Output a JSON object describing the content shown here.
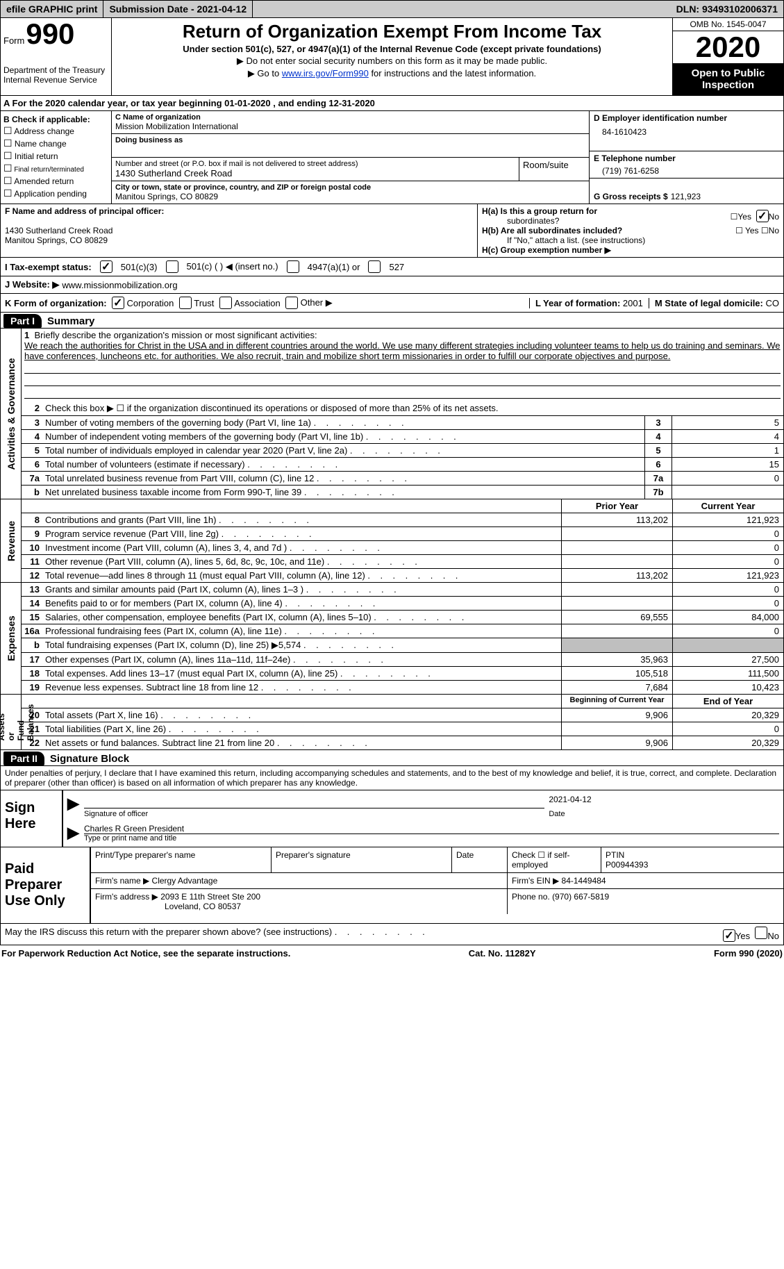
{
  "topbar": {
    "efile": "efile GRAPHIC print",
    "submission": "Submission Date - 2021-04-12",
    "dln": "DLN: 93493102006371"
  },
  "header": {
    "form_word": "Form",
    "form_num": "990",
    "dept": "Department of the Treasury\nInternal Revenue Service",
    "title": "Return of Organization Exempt From Income Tax",
    "subtitle": "Under section 501(c), 527, or 4947(a)(1) of the Internal Revenue Code (except private foundations)",
    "note1": "▶ Do not enter social security numbers on this form as it may be made public.",
    "note2_pre": "▶ Go to ",
    "note2_link": "www.irs.gov/Form990",
    "note2_post": " for instructions and the latest information.",
    "omb": "OMB No. 1545-0047",
    "year": "2020",
    "open": "Open to Public\nInspection"
  },
  "rowA": "A For the 2020 calendar year, or tax year beginning 01-01-2020    , and ending 12-31-2020",
  "boxB": {
    "title": "B Check if applicable:",
    "items": [
      "Address change",
      "Name change",
      "Initial return",
      "Final return/terminated",
      "Amended return",
      "Application pending"
    ]
  },
  "boxC": {
    "lbl_name": "C Name of organization",
    "name": "Mission Mobilization International",
    "lbl_dba": "Doing business as",
    "dba": "",
    "lbl_addr": "Number and street (or P.O. box if mail is not delivered to street address)",
    "lbl_room": "Room/suite",
    "addr": "1430 Sutherland Creek Road",
    "lbl_city": "City or town, state or province, country, and ZIP or foreign postal code",
    "city": "Manitou Springs, CO  80829"
  },
  "boxD": {
    "lbl": "D Employer identification number",
    "val": "84-1610423"
  },
  "boxE": {
    "lbl": "E Telephone number",
    "val": "(719) 761-6258"
  },
  "boxG": {
    "lbl": "G Gross receipts $",
    "val": "121,923"
  },
  "boxF": {
    "lbl": "F Name and address of principal officer:",
    "line1": "",
    "line2": "1430 Sutherland Creek Road",
    "line3": "Manitou Springs, CO  80829"
  },
  "boxH": {
    "a_lbl": "H(a)  Is this a group return for",
    "a_lbl2": "subordinates?",
    "a_yes": "Yes",
    "a_no": "No",
    "b_lbl": "H(b)  Are all subordinates included?",
    "b_note": "If \"No,\" attach a list. (see instructions)",
    "c_lbl": "H(c)  Group exemption number ▶"
  },
  "taxStatus": {
    "lbl": "I  Tax-exempt status:",
    "o1": "501(c)(3)",
    "o2": "501(c) (  ) ◀ (insert no.)",
    "o3": "4947(a)(1) or",
    "o4": "527"
  },
  "rowJ": {
    "lbl": "J  Website: ▶ ",
    "val": "www.missionmobilization.org"
  },
  "rowK": {
    "lbl": "K Form of organization:",
    "o1": "Corporation",
    "o2": "Trust",
    "o3": "Association",
    "o4": "Other ▶",
    "l_lbl": "L Year of formation:",
    "l_val": "2001",
    "m_lbl": "M State of legal domicile:",
    "m_val": "CO"
  },
  "partI": {
    "tag": "Part I",
    "title": "Summary"
  },
  "gov": {
    "label": "Activities & Governance",
    "line1_lbl": "Briefly describe the organization's mission or most significant activities:",
    "mission": "We reach the authorities for Christ in the USA and in different countries around the world. We use many different strategies including volunteer teams to help us do training and seminars. We have conferences, luncheons etc. for authorities. We also recruit, train and mobilize short term missionaries in order to fulfill our corporate objectives and purpose.",
    "line2": "Check this box ▶ ☐  if the organization discontinued its operations or disposed of more than 25% of its net assets.",
    "rows": [
      {
        "n": "3",
        "t": "Number of voting members of the governing body (Part VI, line 1a)",
        "cn": "3",
        "v": "5"
      },
      {
        "n": "4",
        "t": "Number of independent voting members of the governing body (Part VI, line 1b)",
        "cn": "4",
        "v": "4"
      },
      {
        "n": "5",
        "t": "Total number of individuals employed in calendar year 2020 (Part V, line 2a)",
        "cn": "5",
        "v": "1"
      },
      {
        "n": "6",
        "t": "Total number of volunteers (estimate if necessary)",
        "cn": "6",
        "v": "15"
      },
      {
        "n": "7a",
        "t": "Total unrelated business revenue from Part VIII, column (C), line 12",
        "cn": "7a",
        "v": "0"
      },
      {
        "n": "b",
        "t": "Net unrelated business taxable income from Form 990-T, line 39",
        "cn": "7b",
        "v": ""
      }
    ]
  },
  "rev": {
    "label": "Revenue",
    "hdr_prev": "Prior Year",
    "hdr_curr": "Current Year",
    "rows": [
      {
        "n": "8",
        "t": "Contributions and grants (Part VIII, line 1h)",
        "p": "113,202",
        "c": "121,923"
      },
      {
        "n": "9",
        "t": "Program service revenue (Part VIII, line 2g)",
        "p": "",
        "c": "0"
      },
      {
        "n": "10",
        "t": "Investment income (Part VIII, column (A), lines 3, 4, and 7d )",
        "p": "",
        "c": "0"
      },
      {
        "n": "11",
        "t": "Other revenue (Part VIII, column (A), lines 5, 6d, 8c, 9c, 10c, and 11e)",
        "p": "",
        "c": "0"
      },
      {
        "n": "12",
        "t": "Total revenue—add lines 8 through 11 (must equal Part VIII, column (A), line 12)",
        "p": "113,202",
        "c": "121,923"
      }
    ]
  },
  "exp": {
    "label": "Expenses",
    "rows": [
      {
        "n": "13",
        "t": "Grants and similar amounts paid (Part IX, column (A), lines 1–3 )",
        "p": "",
        "c": "0"
      },
      {
        "n": "14",
        "t": "Benefits paid to or for members (Part IX, column (A), line 4)",
        "p": "",
        "c": "0"
      },
      {
        "n": "15",
        "t": "Salaries, other compensation, employee benefits (Part IX, column (A), lines 5–10)",
        "p": "69,555",
        "c": "84,000"
      },
      {
        "n": "16a",
        "t": "Professional fundraising fees (Part IX, column (A), line 11e)",
        "p": "",
        "c": "0"
      },
      {
        "n": "b",
        "t": "Total fundraising expenses (Part IX, column (D), line 25) ▶5,574",
        "p": "grey",
        "c": "grey"
      },
      {
        "n": "17",
        "t": "Other expenses (Part IX, column (A), lines 11a–11d, 11f–24e)",
        "p": "35,963",
        "c": "27,500"
      },
      {
        "n": "18",
        "t": "Total expenses. Add lines 13–17 (must equal Part IX, column (A), line 25)",
        "p": "105,518",
        "c": "111,500"
      },
      {
        "n": "19",
        "t": "Revenue less expenses. Subtract line 18 from line 12",
        "p": "7,684",
        "c": "10,423"
      }
    ]
  },
  "net": {
    "label": "Net Assets or\nFund Balances",
    "hdr_prev": "Beginning of Current Year",
    "hdr_curr": "End of Year",
    "rows": [
      {
        "n": "20",
        "t": "Total assets (Part X, line 16)",
        "p": "9,906",
        "c": "20,329"
      },
      {
        "n": "21",
        "t": "Total liabilities (Part X, line 26)",
        "p": "",
        "c": "0"
      },
      {
        "n": "22",
        "t": "Net assets or fund balances. Subtract line 21 from line 20",
        "p": "9,906",
        "c": "20,329"
      }
    ]
  },
  "partII": {
    "tag": "Part II",
    "title": "Signature Block"
  },
  "sig": {
    "note": "Under penalties of perjury, I declare that I have examined this return, including accompanying schedules and statements, and to the best of my knowledge and belief, it is true, correct, and complete. Declaration of preparer (other than officer) is based on all information of which preparer has any knowledge.",
    "sign_here": "Sign\nHere",
    "sig_officer_lbl": "Signature of officer",
    "sig_date": "2021-04-12",
    "date_lbl": "Date",
    "name_title": "Charles R Green  President",
    "name_title_lbl": "Type or print name and title"
  },
  "prep": {
    "title": "Paid\nPreparer\nUse Only",
    "h1": "Print/Type preparer's name",
    "h2": "Preparer's signature",
    "h3": "Date",
    "h4": "Check ☐ if self-employed",
    "h5_lbl": "PTIN",
    "h5_val": "P00944393",
    "firm_name_lbl": "Firm's name   ▶",
    "firm_name": "Clergy Advantage",
    "firm_ein_lbl": "Firm's EIN ▶",
    "firm_ein": "84-1449484",
    "firm_addr_lbl": "Firm's address ▶",
    "firm_addr1": "2093 E 11th Street Ste 200",
    "firm_addr2": "Loveland, CO  80537",
    "phone_lbl": "Phone no.",
    "phone": "(970) 667-5819"
  },
  "footer": {
    "q": "May the IRS discuss this return with the preparer shown above? (see instructions)",
    "yes": "Yes",
    "no": "No",
    "paperwork": "For Paperwork Reduction Act Notice, see the separate instructions.",
    "cat": "Cat. No. 11282Y",
    "form": "Form 990 (2020)"
  }
}
